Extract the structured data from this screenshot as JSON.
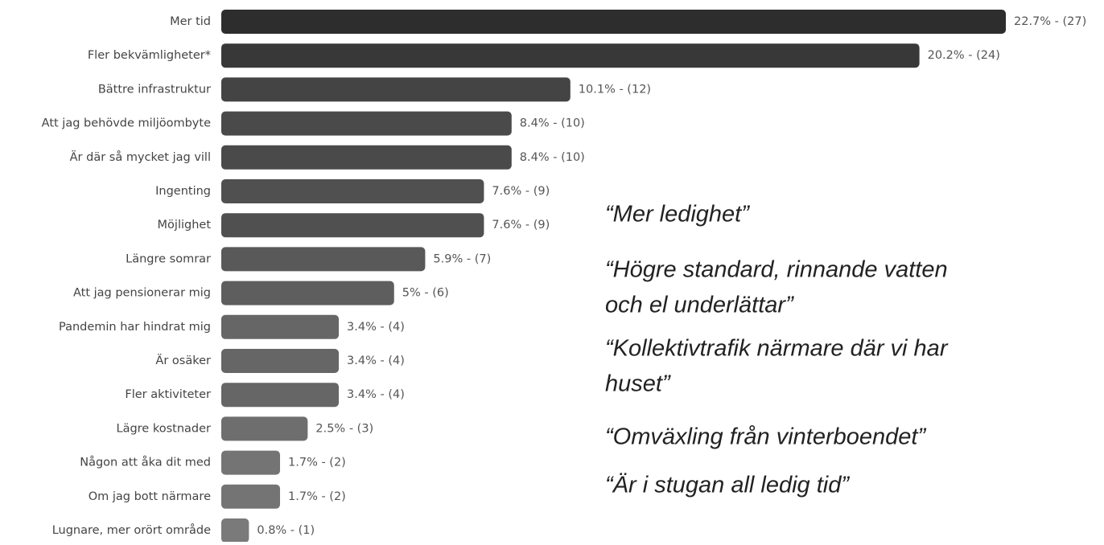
{
  "chart_data": {
    "type": "bar",
    "orientation": "horizontal",
    "categories": [
      "Mer tid",
      "Fler bekvämligheter*",
      "Bättre infrastruktur",
      "Att jag behövde miljöombyte",
      "Är där så mycket jag vill",
      "Ingenting",
      "Möjlighet",
      "Längre somrar",
      "Att jag pensionerar mig",
      "Pandemin har hindrat mig",
      "Är osäker",
      "Fler aktiviteter",
      "Lägre kostnader",
      "Någon att åka dit med",
      "Om jag bott närmare",
      "Lugnare, mer orört område"
    ],
    "values": [
      22.7,
      20.2,
      10.1,
      8.4,
      8.4,
      7.6,
      7.6,
      5.9,
      5,
      3.4,
      3.4,
      3.4,
      2.5,
      1.7,
      1.7,
      0.8
    ],
    "value_labels": [
      "22.7% - (27)",
      "20.2% - (24)",
      "10.1% - (12)",
      "8.4% - (10)",
      "8.4% - (10)",
      "7.6% - (9)",
      "7.6% - (9)",
      "5.9% - (7)",
      "5% - (6)",
      "3.4% - (4)",
      "3.4% - (4)",
      "3.4% - (4)",
      "2.5% - (3)",
      "1.7% - (2)",
      "1.7% - (2)",
      "0.8% - (1)"
    ],
    "colors": [
      "#2d2d2d",
      "#383838",
      "#444444",
      "#4a4a4a",
      "#4a4a4a",
      "#505050",
      "#505050",
      "#595959",
      "#5e5e5e",
      "#666666",
      "#666666",
      "#666666",
      "#6e6e6e",
      "#747474",
      "#747474",
      "#7a7a7a"
    ],
    "annotations": [
      [
        "“Mer ledighet”"
      ],
      [
        "“Högre standard, rinnande vatten",
        "och el underlättar”"
      ],
      [
        "“Kollektivtrafik närmare där vi har",
        "huset”"
      ],
      [
        "“Omväxling från vinterboendet”"
      ],
      [
        "“Är i stugan all ledig tid”"
      ]
    ]
  }
}
